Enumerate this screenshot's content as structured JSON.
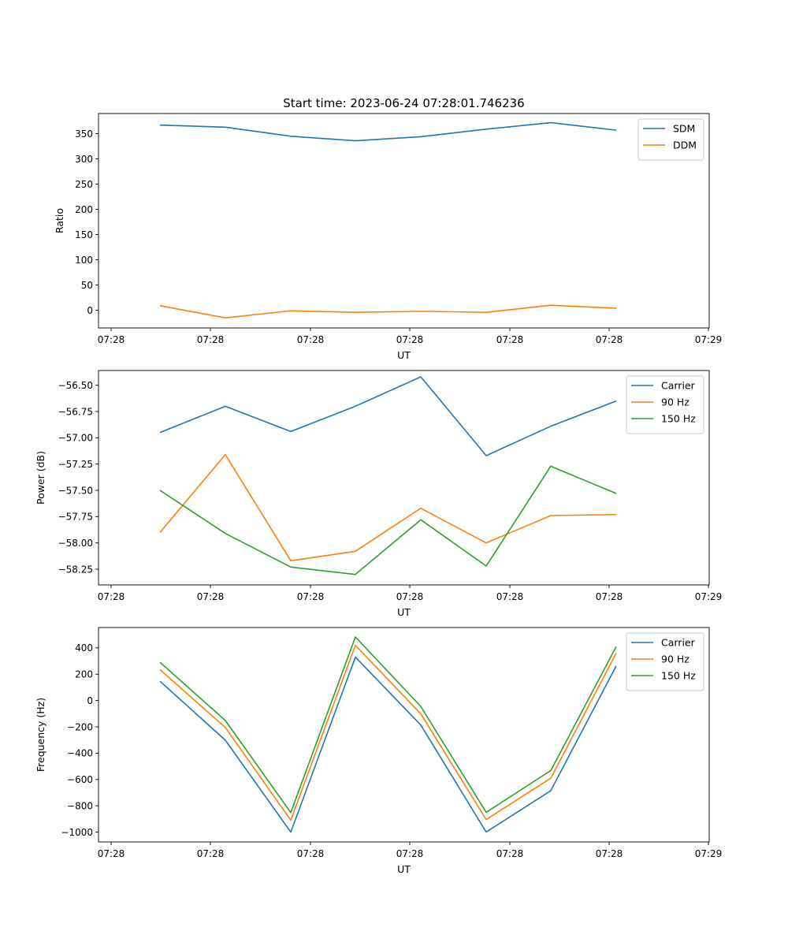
{
  "title": "Start time: 2023-06-24 07:28:01.746236",
  "colors": {
    "blue": "#1f77b4",
    "orange": "#ff7f0e",
    "green": "#2ca02c"
  },
  "chart_data": [
    {
      "type": "line",
      "title": "Start time: 2023-06-24 07:28:01.746236",
      "xlabel": "UT",
      "ylabel": "Ratio",
      "x_tick_labels": [
        "07:28",
        "07:28",
        "07:28",
        "07:28",
        "07:28",
        "07:28",
        "07:29"
      ],
      "y_ticks": [
        0,
        50,
        100,
        150,
        200,
        250,
        300,
        350
      ],
      "y_tick_labels": [
        "0",
        "50",
        "100",
        "150",
        "200",
        "250",
        "300",
        "350"
      ],
      "ylim": [
        -35,
        390
      ],
      "legend": "top-right",
      "grid": false,
      "series": [
        {
          "name": "SDM",
          "color": "#1f77b4",
          "values": [
            367,
            363,
            345,
            336,
            344,
            359,
            372,
            357
          ]
        },
        {
          "name": "DDM",
          "color": "#ff7f0e",
          "values": [
            9,
            -15,
            -1,
            -4,
            -2,
            -4,
            10,
            4
          ]
        }
      ]
    },
    {
      "type": "line",
      "xlabel": "UT",
      "ylabel": "Power (dB)",
      "x_tick_labels": [
        "07:28",
        "07:28",
        "07:28",
        "07:28",
        "07:28",
        "07:28",
        "07:29"
      ],
      "y_ticks": [
        -58.25,
        -58.0,
        -57.75,
        -57.5,
        -57.25,
        -57.0,
        -56.75,
        -56.5
      ],
      "y_tick_labels": [
        "−58.25",
        "−58.00",
        "−57.75",
        "−57.50",
        "−57.25",
        "−57.00",
        "−56.75",
        "−56.50"
      ],
      "ylim": [
        -58.4,
        -56.36
      ],
      "legend": "top-right",
      "grid": false,
      "series": [
        {
          "name": "Carrier",
          "color": "#1f77b4",
          "values": [
            -56.95,
            -56.7,
            -56.94,
            -56.7,
            -56.42,
            -57.17,
            -56.89,
            -56.65
          ]
        },
        {
          "name": "90 Hz",
          "color": "#ff7f0e",
          "values": [
            -57.9,
            -57.16,
            -58.17,
            -58.08,
            -57.67,
            -58.0,
            -57.74,
            -57.73
          ]
        },
        {
          "name": "150 Hz",
          "color": "#2ca02c",
          "values": [
            -57.5,
            -57.91,
            -58.23,
            -58.3,
            -57.78,
            -58.22,
            -57.27,
            -57.53
          ]
        }
      ]
    },
    {
      "type": "line",
      "xlabel": "UT",
      "ylabel": "Frequency (Hz)",
      "x_tick_labels": [
        "07:28",
        "07:28",
        "07:28",
        "07:28",
        "07:28",
        "07:28",
        "07:29"
      ],
      "y_ticks": [
        -1000,
        -800,
        -600,
        -400,
        -200,
        0,
        200,
        400
      ],
      "y_tick_labels": [
        "−1000",
        "−800",
        "−600",
        "−400",
        "−200",
        "0",
        "200",
        "400"
      ],
      "ylim": [
        -1075,
        555
      ],
      "legend": "top-right",
      "grid": false,
      "series": [
        {
          "name": "Carrier",
          "color": "#1f77b4",
          "values": [
            147,
            -302,
            -1000,
            330,
            -186,
            -1000,
            -685,
            263
          ]
        },
        {
          "name": "90 Hz",
          "color": "#ff7f0e",
          "values": [
            235,
            -205,
            -910,
            420,
            -101,
            -905,
            -590,
            360
          ]
        },
        {
          "name": "150 Hz",
          "color": "#2ca02c",
          "values": [
            291,
            -152,
            -852,
            483,
            -45,
            -850,
            -532,
            410
          ]
        }
      ]
    }
  ]
}
